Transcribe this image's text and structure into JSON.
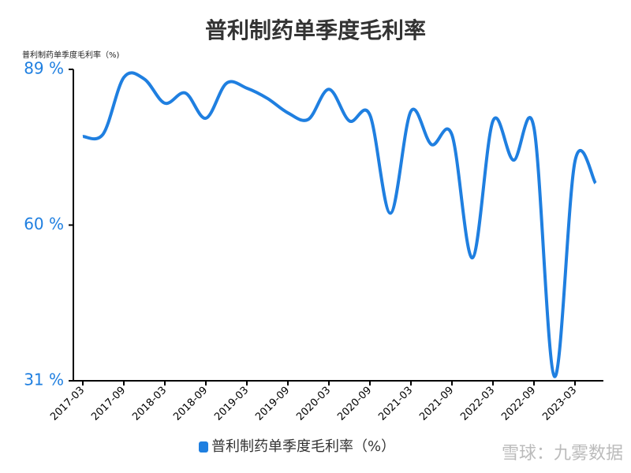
{
  "chart_data": {
    "type": "line",
    "title": "普利制药单季度毛利率",
    "y_label": "普利制药单季度毛利率（%)",
    "categories": [
      "2017-03",
      null,
      "2017-09",
      null,
      "2018-03",
      null,
      "2018-09",
      null,
      "2019-03",
      null,
      "2019-09",
      null,
      "2020-03",
      null,
      "2020-09",
      null,
      "2021-03",
      null,
      "2021-09",
      null,
      "2022-03",
      null,
      "2022-09",
      null,
      "2023-03",
      null
    ],
    "series": [
      {
        "name": "普利制药单季度毛利率（%）",
        "color": "#1f7fe0",
        "values": [
          76.5,
          77,
          87.5,
          87.2,
          82.7,
          84.6,
          79.9,
          86.4,
          85.5,
          83.6,
          80.9,
          79.7,
          85.3,
          79.4,
          80.5,
          62.2,
          81.2,
          75,
          76.8,
          53.9,
          79.4,
          72.1,
          78.1,
          31.8,
          71.9,
          67.8
        ]
      }
    ],
    "ylim": [
      31,
      89
    ],
    "yticks": [
      {
        "value": 31,
        "label": "31 %"
      },
      {
        "value": 60,
        "label": "60 %"
      },
      {
        "value": 89,
        "label": "89 %"
      }
    ],
    "watermark": "雪球：九雾数据"
  }
}
